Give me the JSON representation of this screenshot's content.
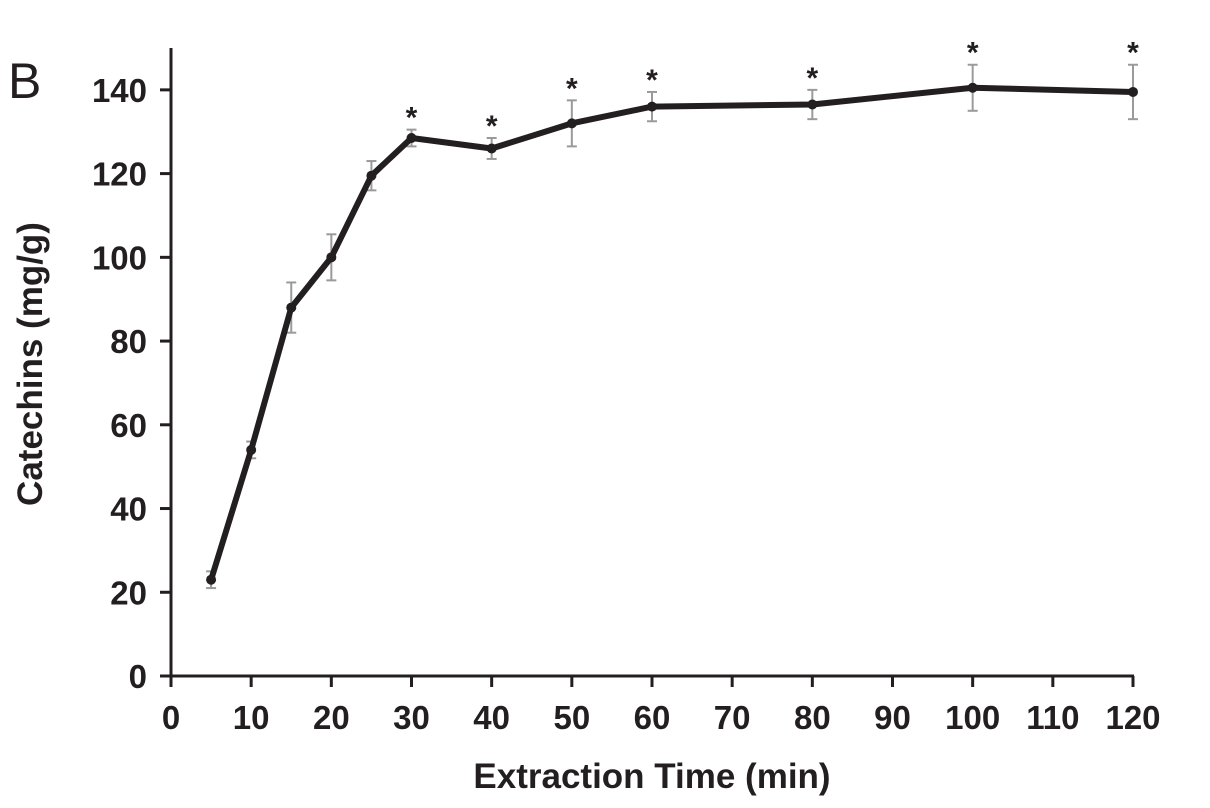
{
  "panel_label": "B",
  "chart_data": {
    "type": "line",
    "title": "",
    "xlabel": "Extraction Time (min)",
    "ylabel": "Catechins (mg/g)",
    "xlim": [
      0,
      120
    ],
    "ylim": [
      0,
      150
    ],
    "x_ticks": [
      0,
      10,
      20,
      30,
      40,
      50,
      60,
      70,
      80,
      90,
      100,
      110,
      120
    ],
    "y_ticks": [
      0,
      20,
      40,
      60,
      80,
      100,
      120,
      140
    ],
    "x_tick_labels": [
      "0",
      "10",
      "20",
      "30",
      "40",
      "50",
      "60",
      "70",
      "80",
      "90",
      "100",
      "110",
      "120"
    ],
    "y_tick_labels": [
      "0",
      "20",
      "40",
      "60",
      "80",
      "100",
      "120",
      "140"
    ],
    "grid": false,
    "series": [
      {
        "x": [
          5,
          10,
          15,
          20,
          25,
          30,
          40,
          50,
          60,
          80,
          100,
          120
        ],
        "y": [
          23,
          54,
          88,
          100,
          119.5,
          128.5,
          126,
          132,
          136,
          136.5,
          140.5,
          139.5
        ],
        "error": [
          2,
          2,
          6,
          5.5,
          3.5,
          2,
          2.5,
          5.5,
          3.5,
          3.5,
          5.5,
          6.5
        ],
        "color": "#231f20"
      }
    ],
    "significance_marker": "*",
    "significance_x": [
      30,
      40,
      50,
      60,
      80,
      100,
      120
    ],
    "error_bar_color": "#9a9a9a"
  }
}
